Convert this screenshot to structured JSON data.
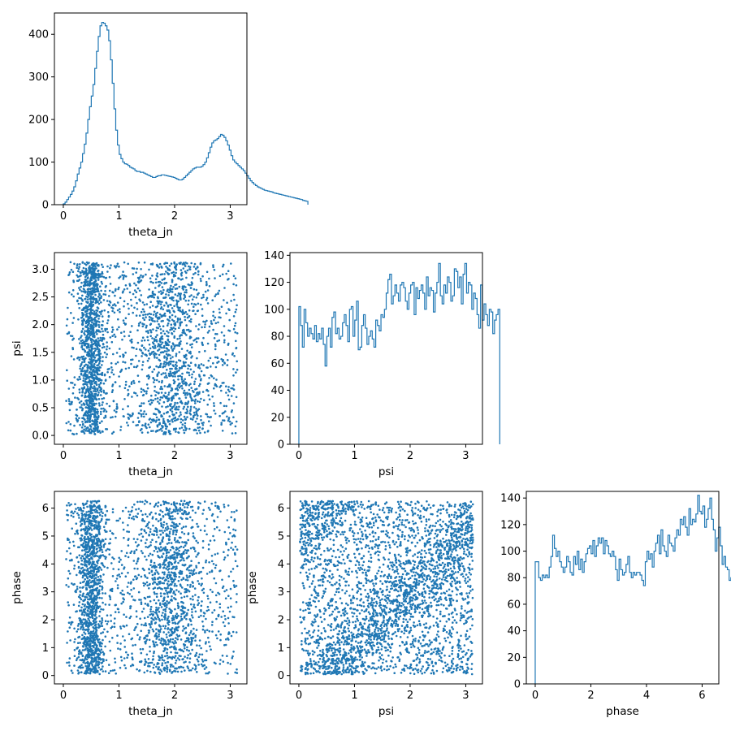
{
  "chart_data": [
    {
      "id": "hist-theta_jn",
      "type": "histogram",
      "title": "",
      "xlabel": "theta_jn",
      "ylabel": "",
      "xlim": [
        -0.16,
        3.3
      ],
      "ylim": [
        0,
        450
      ],
      "xticks": [
        "0",
        "1",
        "2",
        "3"
      ],
      "yticks": [
        "0",
        "100",
        "200",
        "300",
        "400"
      ],
      "color": "#1f77b4",
      "bin_start": 0.0,
      "bin_width": 0.0314,
      "counts": [
        2,
        6,
        12,
        18,
        24,
        32,
        42,
        56,
        72,
        86,
        100,
        120,
        142,
        168,
        200,
        230,
        255,
        282,
        320,
        360,
        395,
        420,
        428,
        426,
        420,
        410,
        385,
        340,
        285,
        225,
        175,
        140,
        118,
        108,
        100,
        96,
        95,
        92,
        88,
        86,
        84,
        80,
        78,
        78,
        76,
        76,
        74,
        72,
        70,
        68,
        66,
        64,
        64,
        66,
        68,
        68,
        70,
        70,
        69,
        68,
        67,
        66,
        65,
        64,
        62,
        60,
        58,
        58,
        60,
        64,
        68,
        72,
        76,
        80,
        84,
        86,
        88,
        88,
        88,
        90,
        94,
        100,
        110,
        122,
        135,
        145,
        150,
        152,
        155,
        160,
        165,
        163,
        158,
        150,
        140,
        128,
        115,
        105,
        100,
        96,
        92,
        88,
        84,
        80,
        74,
        68,
        62,
        56,
        52,
        48,
        45,
        42,
        40,
        38,
        36,
        34,
        33,
        32,
        31,
        30,
        28,
        27,
        26,
        25,
        24,
        23,
        22,
        21,
        20,
        19,
        18,
        17,
        16,
        15,
        14,
        13,
        12,
        10,
        9,
        8
      ]
    },
    {
      "id": "scatter-theta_jn-psi",
      "type": "scatter",
      "title": "",
      "xlabel": "theta_jn",
      "ylabel": "psi",
      "xlim": [
        -0.16,
        3.3
      ],
      "ylim": [
        -0.16,
        3.3
      ],
      "xticks": [
        "0",
        "1",
        "2",
        "3"
      ],
      "yticks": [
        "0.0",
        "0.5",
        "1.0",
        "1.5",
        "2.0",
        "2.5",
        "3.0"
      ],
      "color": "#1f77b4",
      "n_points": 2800
    },
    {
      "id": "hist-psi",
      "type": "histogram",
      "title": "",
      "xlabel": "psi",
      "ylabel": "",
      "xlim": [
        -0.16,
        3.3
      ],
      "ylim": [
        0,
        142
      ],
      "xticks": [
        "0",
        "1",
        "2",
        "3"
      ],
      "yticks": [
        "0",
        "20",
        "40",
        "60",
        "80",
        "100",
        "120",
        "140"
      ],
      "color": "#1f77b4",
      "bin_start": 0.0,
      "bin_width": 0.0314,
      "counts": [
        102,
        88,
        72,
        100,
        90,
        80,
        86,
        82,
        78,
        88,
        76,
        82,
        78,
        86,
        74,
        58,
        80,
        86,
        72,
        94,
        98,
        82,
        86,
        78,
        80,
        90,
        96,
        88,
        76,
        100,
        102,
        80,
        92,
        106,
        70,
        72,
        88,
        96,
        86,
        74,
        80,
        84,
        78,
        72,
        92,
        88,
        84,
        96,
        94,
        100,
        112,
        122,
        126,
        104,
        110,
        118,
        112,
        106,
        118,
        120,
        116,
        106,
        100,
        112,
        118,
        120,
        96,
        116,
        108,
        114,
        118,
        112,
        100,
        124,
        110,
        116,
        114,
        98,
        112,
        120,
        134,
        110,
        104,
        118,
        112,
        124,
        120,
        106,
        110,
        130,
        128,
        116,
        124,
        104,
        126,
        134,
        112,
        120,
        118,
        100,
        112,
        108,
        96,
        86,
        118,
        92,
        104,
        96,
        88,
        100,
        98,
        82,
        92,
        96,
        100
      ]
    },
    {
      "id": "scatter-theta_jn-phase",
      "type": "scatter",
      "title": "",
      "xlabel": "theta_jn",
      "ylabel": "phase",
      "xlim": [
        -0.16,
        3.3
      ],
      "ylim": [
        -0.3,
        6.6
      ],
      "xticks": [
        "0",
        "1",
        "2",
        "3"
      ],
      "yticks": [
        "0",
        "1",
        "2",
        "3",
        "4",
        "5",
        "6"
      ],
      "color": "#1f77b4",
      "n_points": 2800
    },
    {
      "id": "scatter-psi-phase",
      "type": "scatter",
      "title": "",
      "xlabel": "psi",
      "ylabel": "phase",
      "xlim": [
        -0.16,
        3.3
      ],
      "ylim": [
        -0.3,
        6.6
      ],
      "xticks": [
        "0",
        "1",
        "2",
        "3"
      ],
      "yticks": [
        "0",
        "1",
        "2",
        "3",
        "4",
        "5",
        "6"
      ],
      "color": "#1f77b4",
      "n_points": 3200
    },
    {
      "id": "hist-phase",
      "type": "histogram",
      "title": "",
      "xlabel": "phase",
      "ylabel": "",
      "xlim": [
        -0.32,
        6.6
      ],
      "ylim": [
        0,
        145
      ],
      "xticks": [
        "0",
        "2",
        "4",
        "6"
      ],
      "yticks": [
        "0",
        "20",
        "40",
        "60",
        "80",
        "100",
        "120",
        "140"
      ],
      "color": "#1f77b4",
      "bin_start": 0.0,
      "bin_width": 0.0628,
      "counts": [
        92,
        92,
        80,
        78,
        82,
        80,
        82,
        80,
        88,
        96,
        112,
        102,
        96,
        100,
        92,
        88,
        84,
        88,
        96,
        92,
        84,
        82,
        96,
        90,
        100,
        86,
        94,
        84,
        92,
        98,
        102,
        104,
        98,
        108,
        96,
        104,
        110,
        106,
        110,
        98,
        108,
        104,
        98,
        96,
        100,
        96,
        86,
        78,
        94,
        86,
        82,
        84,
        90,
        96,
        84,
        80,
        84,
        82,
        84,
        84,
        82,
        78,
        74,
        92,
        100,
        94,
        98,
        88,
        100,
        106,
        112,
        98,
        116,
        104,
        100,
        96,
        112,
        106,
        104,
        100,
        110,
        116,
        112,
        124,
        120,
        126,
        118,
        112,
        132,
        120,
        124,
        122,
        128,
        142,
        130,
        128,
        134,
        118,
        124,
        132,
        140,
        124,
        116,
        100,
        110,
        118,
        104,
        90,
        96,
        88,
        86,
        78,
        80,
        76
      ]
    }
  ]
}
